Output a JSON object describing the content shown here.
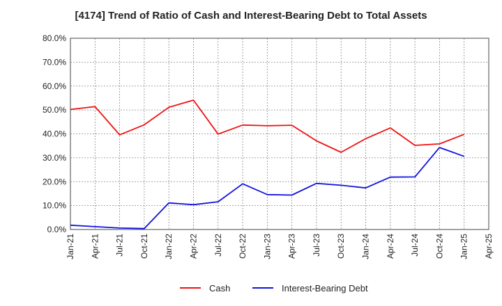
{
  "chart_data": {
    "type": "line",
    "title": "[4174]  Trend of Ratio of Cash and Interest-Bearing Debt to Total Assets",
    "xlabel": "",
    "ylabel": "",
    "ylim": [
      0,
      80
    ],
    "y_ticks": [
      "0.0%",
      "10.0%",
      "20.0%",
      "30.0%",
      "40.0%",
      "50.0%",
      "60.0%",
      "70.0%",
      "80.0%"
    ],
    "y_tick_values": [
      0,
      10,
      20,
      30,
      40,
      50,
      60,
      70,
      80
    ],
    "x_ticks": [
      "Jan-21",
      "Apr-21",
      "Jul-21",
      "Oct-21",
      "Jan-22",
      "Apr-22",
      "Jul-22",
      "Oct-22",
      "Jan-23",
      "Apr-23",
      "Jul-23",
      "Oct-23",
      "Jan-24",
      "Apr-24",
      "Jul-24",
      "Oct-24",
      "Jan-25",
      "Apr-25"
    ],
    "x": [
      "Jan-21",
      "Apr-21",
      "Jul-21",
      "Oct-21",
      "Jan-22",
      "Apr-22",
      "Jul-22",
      "Oct-22",
      "Jan-23",
      "Apr-23",
      "Jul-23",
      "Oct-23",
      "Jan-24",
      "Apr-24",
      "Jul-24",
      "Oct-24",
      "Jan-25"
    ],
    "grid": true,
    "legend_position": "bottom",
    "series": [
      {
        "name": "Cash",
        "color": "#ee1111",
        "values": [
          50.2,
          51.4,
          39.6,
          43.8,
          51.1,
          54.1,
          39.9,
          43.7,
          43.4,
          43.6,
          37.1,
          32.3,
          38.0,
          42.5,
          35.2,
          35.8,
          39.8
        ]
      },
      {
        "name": "Interest-Bearing Debt",
        "color": "#1111dd",
        "values": [
          1.8,
          1.2,
          0.6,
          0.4,
          11.1,
          10.4,
          11.6,
          19.1,
          14.6,
          14.4,
          19.3,
          18.5,
          17.4,
          21.9,
          22.0,
          34.3,
          30.6
        ]
      }
    ]
  }
}
